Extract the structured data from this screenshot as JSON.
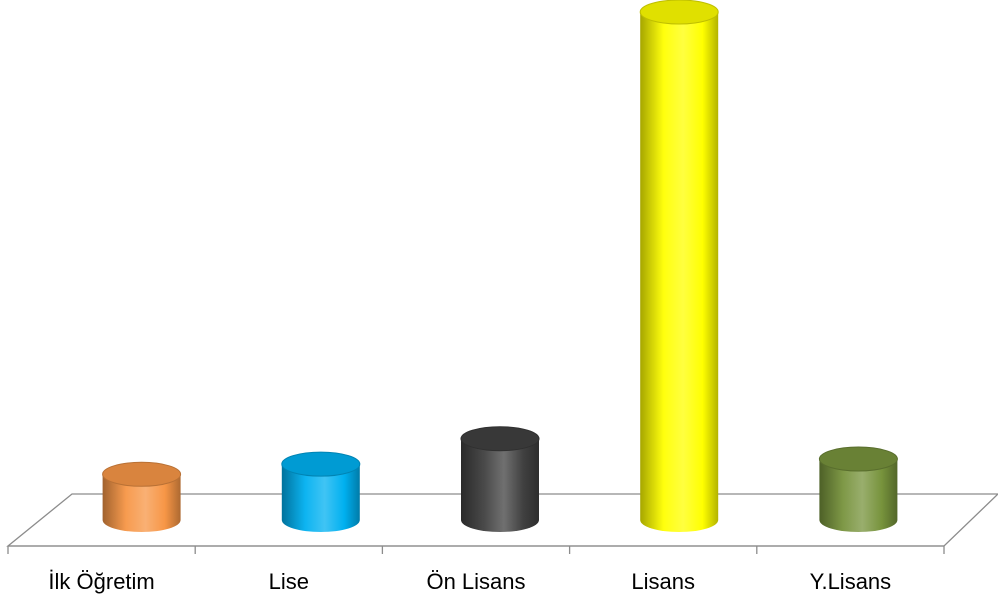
{
  "chart_data": {
    "type": "bar",
    "style": "3d-cylinder",
    "categories": [
      "İlk Öğretim",
      "Lise",
      "Ön Lisans",
      "Lisans",
      "Y.Lisans"
    ],
    "values": [
      9,
      11,
      16,
      100,
      12
    ],
    "colors": [
      "#F79646",
      "#00B0F0",
      "#404040",
      "#FFFF00",
      "#77933C"
    ],
    "ylim": [
      0,
      100
    ],
    "grid": false,
    "legend": "none",
    "title": ""
  }
}
